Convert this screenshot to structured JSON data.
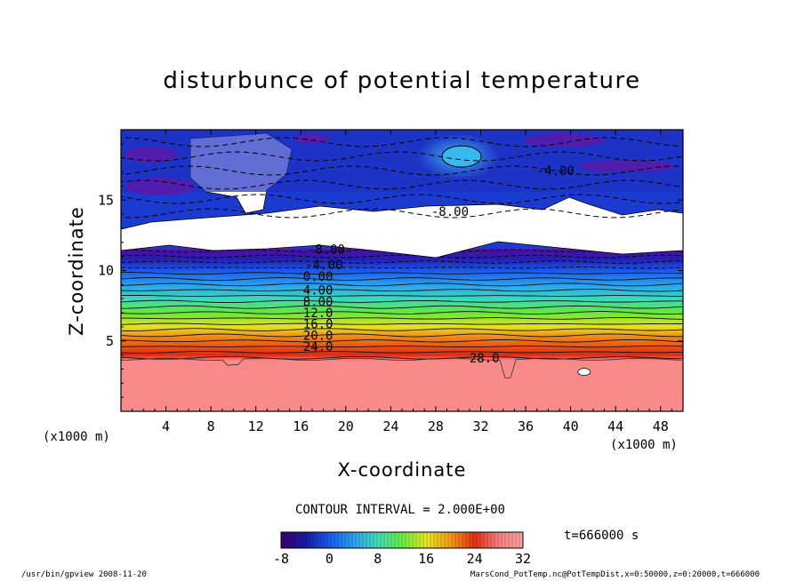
{
  "title": "disturbunce of potential temperature",
  "contour_interval": "CONTOUR INTERVAL = 2.000E+00",
  "time": "t=666000 s",
  "footer_left": "/usr/bin/gpview   2008-11-20",
  "footer_right": "MarsCond_PotTemp.nc@PotTempDist,x=0:50000,z=0:20000,t=666000",
  "colors": {
    "scale": [
      "#3a0070",
      "#1a1aa0",
      "#1a5aee",
      "#2aa0f0",
      "#44dcb8",
      "#66ee44",
      "#e8e820",
      "#f49a18",
      "#e43010",
      "#f78080",
      "#fba0a0"
    ],
    "void": "#ffffff"
  },
  "chart_data": {
    "type": "heatmap",
    "title": "disturbunce of potential temperature",
    "xlabel": "X-coordinate",
    "ylabel": "Z-coordinate",
    "x_unit": "(x1000 m)",
    "z_unit": "(x1000 m)",
    "xlim": [
      0,
      50
    ],
    "zlim": [
      0,
      20
    ],
    "x_ticks": [
      4,
      8,
      12,
      16,
      20,
      24,
      28,
      32,
      36,
      40,
      44,
      48
    ],
    "z_ticks": [
      5,
      10,
      15
    ],
    "x_tick_labels": [
      "4",
      "8",
      "12",
      "16",
      "20",
      "24",
      "28",
      "32",
      "36",
      "40",
      "44",
      "48"
    ],
    "z_tick_labels": [
      "5",
      "10",
      "15"
    ],
    "color_range": [
      -8,
      32
    ],
    "colorbar_ticks": [
      -8,
      0,
      8,
      16,
      24,
      32
    ],
    "colorbar_tick_labels": [
      "-8",
      "0",
      "8",
      "16",
      "24",
      "32"
    ],
    "contour_interval": 2.0,
    "contour_levels": [
      {
        "z": 3.8,
        "value": 30
      },
      {
        "z": 4.2,
        "value": 28
      },
      {
        "z": 4.6,
        "value": 26
      },
      {
        "z": 5.0,
        "value": 24
      },
      {
        "z": 5.4,
        "value": 22
      },
      {
        "z": 5.8,
        "value": 20
      },
      {
        "z": 6.2,
        "value": 18
      },
      {
        "z": 6.6,
        "value": 16
      },
      {
        "z": 7.0,
        "value": 14
      },
      {
        "z": 7.4,
        "value": 12
      },
      {
        "z": 7.8,
        "value": 10
      },
      {
        "z": 8.2,
        "value": 8
      },
      {
        "z": 8.6,
        "value": 6
      },
      {
        "z": 9.0,
        "value": 4
      },
      {
        "z": 9.4,
        "value": 2
      },
      {
        "z": 9.8,
        "value": 0
      },
      {
        "z": 10.2,
        "value": -2
      },
      {
        "z": 10.6,
        "value": -4
      },
      {
        "z": 11.0,
        "value": -6
      },
      {
        "z": 11.4,
        "value": -8
      }
    ],
    "contour_labels": [
      {
        "text": "-8.00",
        "x": 16.6,
        "z": 11.5
      },
      {
        "text": "-4.00",
        "x": 16.4,
        "z": 10.4
      },
      {
        "text": "0.00",
        "x": 16.2,
        "z": 9.6
      },
      {
        "text": "4.00",
        "x": 16.2,
        "z": 8.6
      },
      {
        "text": "8.00",
        "x": 16.2,
        "z": 7.8
      },
      {
        "text": "12.0",
        "x": 16.2,
        "z": 7.0
      },
      {
        "text": "16.0",
        "x": 16.2,
        "z": 6.2
      },
      {
        "text": "20.0",
        "x": 16.2,
        "z": 5.4
      },
      {
        "text": "24.0",
        "x": 16.2,
        "z": 4.6
      },
      {
        "text": "28.0",
        "x": 31.0,
        "z": 3.8
      },
      {
        "text": "-4.00",
        "x": 37.0,
        "z": 17.1
      },
      {
        "text": "-8.00",
        "x": 27.6,
        "z": 14.2
      }
    ]
  }
}
